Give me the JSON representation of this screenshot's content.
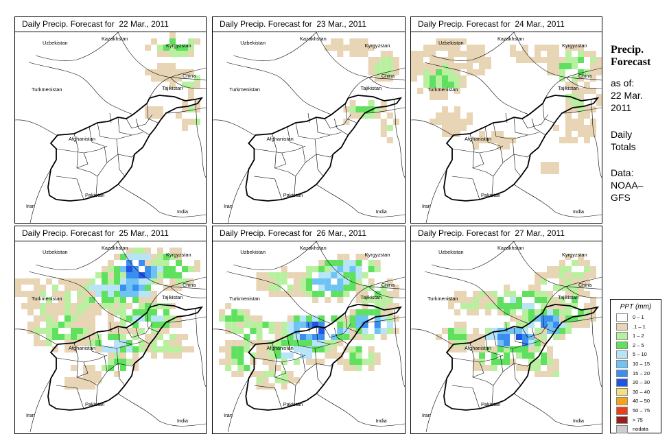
{
  "panels": [
    {
      "title": "Daily Precip. Forecast for  22 Mar., 2011",
      "day": 22
    },
    {
      "title": "Daily Precip. Forecast for  23 Mar., 2011",
      "day": 23
    },
    {
      "title": "Daily Precip. Forecast for  24 Mar., 2011",
      "day": 24
    },
    {
      "title": "Daily Precip. Forecast for  25 Mar., 2011",
      "day": 25
    },
    {
      "title": "Daily Precip. Forecast for  26 Mar., 2011",
      "day": 26
    },
    {
      "title": "Daily Precip. Forecast for  27 Mar., 2011",
      "day": 27
    }
  ],
  "map_labels": {
    "uzbekistan": "Uzbekistan",
    "kazakhstan": "Kazakhstan",
    "kyrgyzstan": "Kyrgyzstan",
    "china": "China",
    "turkmenistan": "Turkmenistan",
    "tajikistan": "Tajikistan",
    "afghanistan": "Afghanistan",
    "pakistan": "Pakistan",
    "iran": "Iran",
    "india": "India"
  },
  "sidebar": {
    "title_line1": "Precip.",
    "title_line2": "Forecast",
    "asof_line1": "as of:",
    "asof_line2": "22 Mar.",
    "asof_line3": "2011",
    "totals_line1": "Daily",
    "totals_line2": "Totals",
    "data_line1": "Data:",
    "data_line2": "NOAA–",
    "data_line3": "GFS"
  },
  "legend": {
    "title": "PPT (mm)",
    "items": [
      {
        "label": "0 – 1",
        "color": "#ffffff"
      },
      {
        "label": ".1 – 1",
        "color": "#e8d5b5"
      },
      {
        "label": "1 – 2",
        "color": "#b8f0a0"
      },
      {
        "label": "2 – 5",
        "color": "#5fe05f"
      },
      {
        "label": "5 – 10",
        "color": "#b8e4f8"
      },
      {
        "label": "10 – 15",
        "color": "#6ec3f2"
      },
      {
        "label": "15 – 20",
        "color": "#3c8df0"
      },
      {
        "label": "20 – 30",
        "color": "#1f55e0"
      },
      {
        "label": "30 – 40",
        "color": "#f7e07a"
      },
      {
        "label": "40 – 50",
        "color": "#f5a31a"
      },
      {
        "label": "50 – 75",
        "color": "#e8401a"
      },
      {
        "label": "> 75",
        "color": "#a01818"
      },
      {
        "label": "nodata",
        "color": "#cccccc"
      }
    ]
  }
}
